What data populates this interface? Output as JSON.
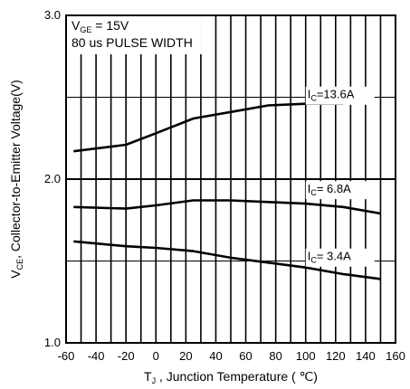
{
  "chart_data": {
    "type": "line",
    "title": "",
    "x": [
      -55,
      -20,
      0,
      25,
      50,
      75,
      100,
      125,
      150
    ],
    "series": [
      {
        "name": "IC=13.6A",
        "values": [
          2.17,
          2.21,
          2.28,
          2.37,
          2.41,
          2.45,
          2.46,
          2.46,
          null
        ]
      },
      {
        "name": "IC=6.8A",
        "values": [
          1.83,
          1.82,
          1.84,
          1.87,
          1.87,
          1.86,
          1.85,
          1.83,
          1.79
        ]
      },
      {
        "name": "IC=3.4A",
        "values": [
          1.62,
          1.59,
          1.58,
          1.56,
          1.52,
          1.49,
          1.46,
          1.42,
          1.39
        ]
      }
    ],
    "xlim": [
      -60,
      160
    ],
    "ylim": [
      1.0,
      3.0
    ],
    "x_ticks": [
      "-60",
      "-40",
      "-20",
      "0",
      "20",
      "40",
      "60",
      "80",
      "100",
      "120",
      "140",
      "160"
    ],
    "y_ticks": [
      "1.0",
      "2.0",
      "3.0"
    ],
    "xlabel": {
      "main": "T",
      "sub": "J",
      "rest": " , Junction Temperature ( ℃)"
    },
    "ylabel": {
      "main": "V",
      "sub": "CE",
      "rest": ", Collector-to-Emitter Voltage(V)"
    },
    "conditions": {
      "line1": {
        "main": "V",
        "sub": "GE",
        "rest": " = 15V"
      },
      "line2": "80 us PULSE WIDTH"
    },
    "curve_labels": [
      {
        "series": 0,
        "main": "I",
        "sub": "C",
        "rest": "=13.6A"
      },
      {
        "series": 1,
        "main": "I",
        "sub": "C",
        "rest": "= 6.8A"
      },
      {
        "series": 2,
        "main": "I",
        "sub": "C",
        "rest": "= 3.4A"
      }
    ],
    "grid": true
  }
}
